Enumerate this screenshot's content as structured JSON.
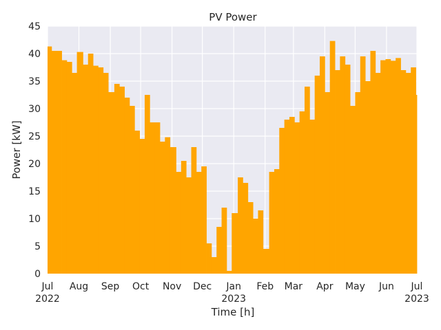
{
  "chart_data": {
    "type": "area",
    "title": "PV Power",
    "xlabel": "Time [h]",
    "ylabel": "Power [kW]",
    "ylim": [
      0,
      45
    ],
    "yticks": [
      0,
      5,
      10,
      15,
      20,
      25,
      30,
      35,
      40,
      45
    ],
    "xlim": [
      "2022-07-01",
      "2023-07-01"
    ],
    "xticks": [
      {
        "date": "2022-07-01",
        "label": "Jul",
        "sublabel": "2022"
      },
      {
        "date": "2022-08-01",
        "label": "Aug",
        "sublabel": ""
      },
      {
        "date": "2022-09-01",
        "label": "Sep",
        "sublabel": ""
      },
      {
        "date": "2022-10-01",
        "label": "Oct",
        "sublabel": ""
      },
      {
        "date": "2022-11-01",
        "label": "Nov",
        "sublabel": ""
      },
      {
        "date": "2022-12-01",
        "label": "Dec",
        "sublabel": ""
      },
      {
        "date": "2023-01-01",
        "label": "Jan",
        "sublabel": "2023"
      },
      {
        "date": "2023-02-01",
        "label": "Feb",
        "sublabel": ""
      },
      {
        "date": "2023-03-01",
        "label": "Mar",
        "sublabel": ""
      },
      {
        "date": "2023-04-01",
        "label": "Apr",
        "sublabel": ""
      },
      {
        "date": "2023-05-01",
        "label": "May",
        "sublabel": ""
      },
      {
        "date": "2023-06-01",
        "label": "Jun",
        "sublabel": ""
      },
      {
        "date": "2023-07-01",
        "label": "Jul",
        "sublabel": "2023"
      }
    ],
    "grid": true,
    "background": "#EAEAF2",
    "grid_color": "#FFFFFF",
    "series": [
      {
        "color": "#FFA500",
        "x": [
          "2022-07-01",
          "2022-07-05",
          "2022-07-10",
          "2022-07-15",
          "2022-07-20",
          "2022-07-25",
          "2022-07-30",
          "2022-08-05",
          "2022-08-10",
          "2022-08-15",
          "2022-08-20",
          "2022-08-25",
          "2022-08-30",
          "2022-09-05",
          "2022-09-10",
          "2022-09-15",
          "2022-09-20",
          "2022-09-25",
          "2022-09-30",
          "2022-10-05",
          "2022-10-10",
          "2022-10-15",
          "2022-10-20",
          "2022-10-25",
          "2022-10-30",
          "2022-11-05",
          "2022-11-10",
          "2022-11-15",
          "2022-11-20",
          "2022-11-25",
          "2022-11-30",
          "2022-12-05",
          "2022-12-10",
          "2022-12-15",
          "2022-12-20",
          "2022-12-25",
          "2022-12-30",
          "2023-01-05",
          "2023-01-10",
          "2023-01-15",
          "2023-01-20",
          "2023-01-25",
          "2023-01-30",
          "2023-02-05",
          "2023-02-10",
          "2023-02-15",
          "2023-02-20",
          "2023-02-25",
          "2023-03-02",
          "2023-03-07",
          "2023-03-12",
          "2023-03-17",
          "2023-03-22",
          "2023-03-27",
          "2023-04-01",
          "2023-04-06",
          "2023-04-11",
          "2023-04-16",
          "2023-04-21",
          "2023-04-26",
          "2023-05-01",
          "2023-05-06",
          "2023-05-11",
          "2023-05-16",
          "2023-05-21",
          "2023-05-26",
          "2023-05-31",
          "2023-06-05",
          "2023-06-10",
          "2023-06-15",
          "2023-06-20",
          "2023-06-25",
          "2023-06-30"
        ],
        "y": [
          41.3,
          40.5,
          40.5,
          38.8,
          38.5,
          36.5,
          40.3,
          38.0,
          40.0,
          37.8,
          37.5,
          36.5,
          33.0,
          34.5,
          34.0,
          32.0,
          30.5,
          26.0,
          24.5,
          32.5,
          27.5,
          27.5,
          24.0,
          24.8,
          23.0,
          18.5,
          20.5,
          17.5,
          23.0,
          18.5,
          19.5,
          5.5,
          3.0,
          8.5,
          12.0,
          0.5,
          11.0,
          17.5,
          16.5,
          13.0,
          10.0,
          11.5,
          4.5,
          18.5,
          19.0,
          26.5,
          28.0,
          28.5,
          27.5,
          29.5,
          34.0,
          28.0,
          36.0,
          39.5,
          33.0,
          42.3,
          37.0,
          39.5,
          38.0,
          30.5,
          33.0,
          39.5,
          35.0,
          40.5,
          36.5,
          38.8,
          39.0,
          38.7,
          39.2,
          37.0,
          36.5,
          37.5,
          32.5
        ]
      }
    ]
  }
}
